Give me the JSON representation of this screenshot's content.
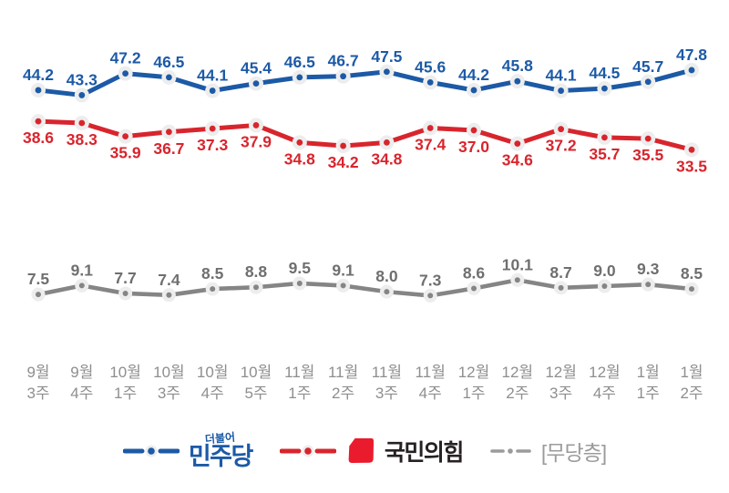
{
  "chart_data": {
    "type": "line",
    "title": "",
    "grid": false,
    "background": "#ffffff",
    "legend_position": "bottom",
    "value_labels": true,
    "value_label_decimals": 1,
    "ylim": [
      0,
      55
    ],
    "categories": [
      "9월 3주",
      "9월 4주",
      "10월 1주",
      "10월 3주",
      "10월 4주",
      "10월 5주",
      "11월 1주",
      "11월 2주",
      "11월 3주",
      "11월 4주",
      "12월 1주",
      "12월 2주",
      "12월 3주",
      "12월 4주",
      "1월 1주",
      "1월 2주"
    ],
    "axis_tick_color": "#8e8e8e",
    "series": [
      {
        "id": "minjoo",
        "label": "민주당",
        "color": "#1c5aa6",
        "label_color": "#1c5aa6",
        "values": [
          44.2,
          43.3,
          47.2,
          46.5,
          44.1,
          45.4,
          46.5,
          46.7,
          47.5,
          45.6,
          44.2,
          45.8,
          44.1,
          44.5,
          45.7,
          47.8
        ]
      },
      {
        "id": "kukmin",
        "label": "국민의힘",
        "color": "#d8252d",
        "label_color": "#d8252d",
        "values": [
          38.6,
          38.3,
          35.9,
          36.7,
          37.3,
          37.9,
          34.8,
          34.2,
          34.8,
          37.4,
          37.0,
          34.6,
          37.2,
          35.7,
          35.5,
          33.5
        ]
      },
      {
        "id": "mudang",
        "label": "무당층",
        "color": "#858585",
        "label_color": "#6f6f6f",
        "values": [
          7.5,
          9.1,
          7.7,
          7.4,
          8.5,
          8.8,
          9.5,
          9.1,
          8.0,
          7.3,
          8.6,
          10.1,
          8.7,
          9.0,
          9.3,
          8.5
        ]
      }
    ]
  },
  "legend": {
    "items": [
      {
        "id": "minjoo",
        "prefix": "더불어",
        "label": "민주당",
        "text_color": "#1c5aa6",
        "marker_color": "#1c5aa6"
      },
      {
        "id": "kukmin",
        "label": "국민의힘",
        "text_color": "#272122",
        "marker_color": "#d8252d",
        "logo_color": "#ea1b2d"
      },
      {
        "id": "mudang",
        "label": "[무당층]",
        "text_color": "#9b9b9b",
        "marker_color": "#9b9b9b"
      }
    ]
  }
}
